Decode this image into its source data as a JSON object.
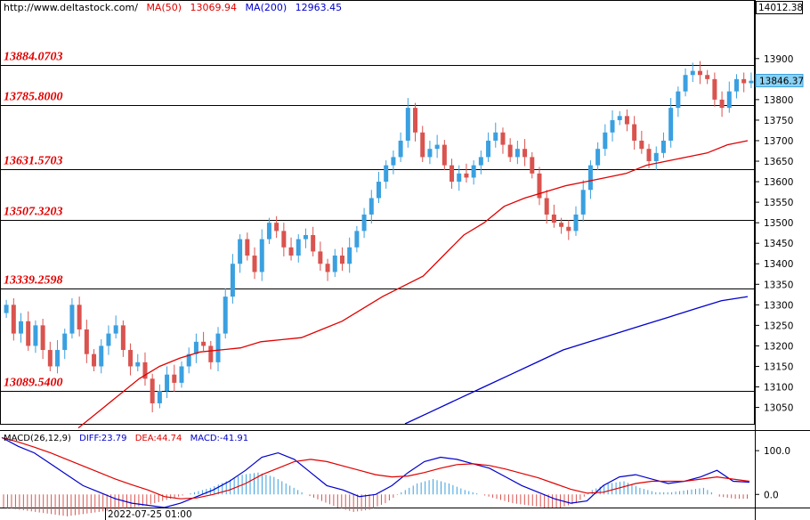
{
  "header": {
    "site": "http://www.deltastock.com/",
    "ma50_label": "MA(50)",
    "ma50_value": "13069.94",
    "ma200_label": "MA(200)",
    "ma200_value": "12963.45"
  },
  "macd_header": {
    "label": "MACD(26,12,9)",
    "diff": "DIFF:23.79",
    "dea": "DEA:44.74",
    "macd": "MACD:-41.91"
  },
  "price_axis": {
    "top_label": "14012.38",
    "current_price": "13846.37",
    "ticks": [
      13900,
      13850,
      13800,
      13750,
      13700,
      13650,
      13600,
      13550,
      13500,
      13450,
      13400,
      13350,
      13300,
      13250,
      13200,
      13150,
      13100,
      13050
    ]
  },
  "macd_axis": {
    "ticks": [
      "100.0",
      "0.0"
    ]
  },
  "date_label": "2022-07-25 01:00",
  "colors": {
    "up": "#3aa0e0",
    "down": "#d9534f",
    "ma50": "#e00000",
    "ma200": "#0000cc",
    "level": "#e00000"
  },
  "chart_data": {
    "type": "candlestick",
    "ylim": [
      13010,
      14012.38
    ],
    "levels": [
      13884.0703,
      13785.8,
      13631.5703,
      13507.3203,
      13339.2598,
      13089.54
    ],
    "level_labels": [
      "13884.0703",
      "13785.8000",
      "13631.5703",
      "13507.3203",
      "13339.2598",
      "13089.5400"
    ],
    "close_path": [
      13300,
      13230,
      13260,
      13200,
      13250,
      13190,
      13150,
      13190,
      13230,
      13300,
      13240,
      13180,
      13150,
      13200,
      13230,
      13250,
      13190,
      13150,
      13160,
      13120,
      13060,
      13090,
      13130,
      13110,
      13150,
      13180,
      13210,
      13200,
      13160,
      13230,
      13320,
      13400,
      13460,
      13420,
      13380,
      13460,
      13500,
      13480,
      13440,
      13420,
      13460,
      13470,
      13430,
      13400,
      13380,
      13420,
      13400,
      13440,
      13480,
      13520,
      13560,
      13600,
      13640,
      13660,
      13700,
      13780,
      13720,
      13660,
      13680,
      13690,
      13640,
      13600,
      13620,
      13610,
      13640,
      13660,
      13700,
      13720,
      13690,
      13660,
      13680,
      13660,
      13620,
      13560,
      13520,
      13500,
      13490,
      13480,
      13520,
      13580,
      13640,
      13680,
      13720,
      13750,
      13760,
      13740,
      13700,
      13680,
      13650,
      13670,
      13700,
      13780,
      13820,
      13860,
      13870,
      13860,
      13850,
      13800,
      13780,
      13820,
      13850,
      13840,
      13846
    ],
    "ma50": [
      13000,
      13040,
      13080,
      13120,
      13150,
      13170,
      13185,
      13190,
      13195,
      13210,
      13215,
      13220,
      13240,
      13260,
      13290,
      13320,
      13345,
      13370,
      13420,
      13470,
      13500,
      13540,
      13560,
      13575,
      13590,
      13600,
      13610,
      13620,
      13640,
      13650,
      13660,
      13670,
      13690,
      13700
    ],
    "ma200": [
      13010,
      13040,
      13070,
      13100,
      13130,
      13160,
      13190,
      13210,
      13230,
      13250,
      13270,
      13290,
      13310,
      13320
    ],
    "macd": {
      "ylim": [
        -30,
        145
      ],
      "diff": [
        130,
        110,
        95,
        70,
        45,
        20,
        5,
        -10,
        -20,
        -25,
        -30,
        -20,
        -5,
        10,
        30,
        55,
        85,
        95,
        80,
        50,
        20,
        10,
        -5,
        0,
        20,
        50,
        75,
        85,
        80,
        70,
        60,
        40,
        20,
        5,
        -10,
        -20,
        -15,
        20,
        40,
        45,
        35,
        25,
        30,
        40,
        55,
        30,
        28
      ],
      "dea": [
        130,
        120,
        108,
        95,
        80,
        65,
        50,
        35,
        22,
        10,
        -5,
        -10,
        -8,
        0,
        10,
        25,
        45,
        60,
        75,
        80,
        75,
        65,
        55,
        45,
        40,
        42,
        50,
        60,
        68,
        70,
        66,
        58,
        48,
        38,
        25,
        12,
        3,
        5,
        15,
        25,
        30,
        30,
        30,
        35,
        40,
        35,
        30
      ],
      "hist": [
        -30,
        -35,
        -40,
        -45,
        -50,
        -45,
        -40,
        -35,
        -30,
        -25,
        -15,
        -5,
        5,
        15,
        30,
        45,
        50,
        40,
        20,
        0,
        -15,
        -30,
        -40,
        -35,
        -20,
        5,
        25,
        35,
        25,
        10,
        0,
        -10,
        -20,
        -25,
        -30,
        -30,
        -20,
        10,
        25,
        30,
        15,
        5,
        5,
        10,
        15,
        -5,
        -10
      ]
    }
  }
}
